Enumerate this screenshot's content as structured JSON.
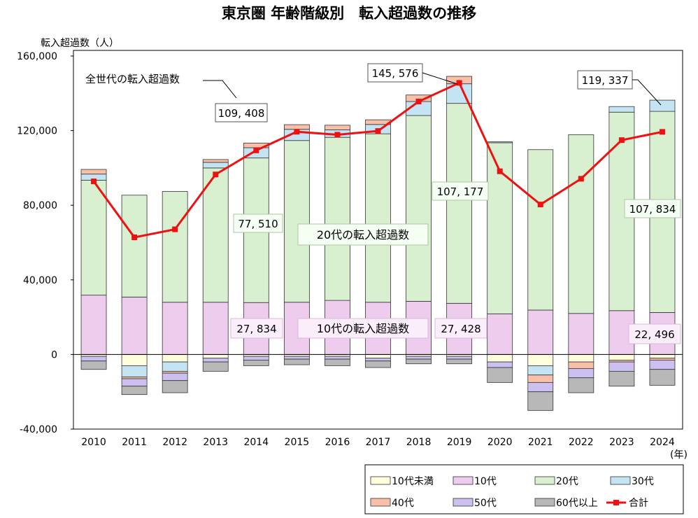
{
  "chart_data": {
    "type": "bar",
    "title": "東京圏 年齢階級別　転入超過数の推移",
    "ylabel": "転入超過数（人）",
    "xlabel": "(年)",
    "ylim": [
      -40000,
      160000
    ],
    "yticks": [
      "160,000",
      "120,000",
      "80,000",
      "40,000",
      "0",
      "-40,000"
    ],
    "ytick_values": [
      160000,
      120000,
      80000,
      40000,
      0,
      -40000
    ],
    "categories": [
      "2010",
      "2011",
      "2012",
      "2013",
      "2014",
      "2015",
      "2016",
      "2017",
      "2018",
      "2019",
      "2020",
      "2021",
      "2022",
      "2023",
      "2024"
    ],
    "stacked": true,
    "grid": false,
    "series": [
      {
        "name": "10代未満",
        "kind": "bar",
        "color": "#FFFFDD",
        "values": [
          -1000,
          -6000,
          -4000,
          -2000,
          -1000,
          -1000,
          -1000,
          -2000,
          -1000,
          -1000,
          -4000,
          -6000,
          -4000,
          -3000,
          -2000
        ]
      },
      {
        "name": "10代",
        "kind": "bar",
        "color": "#EECCEE",
        "values": [
          31800,
          30800,
          28000,
          28000,
          27834,
          28000,
          29000,
          28000,
          28500,
          27428,
          21800,
          23800,
          22000,
          23500,
          22496
        ]
      },
      {
        "name": "20代",
        "kind": "bar",
        "color": "#D9F0D0",
        "values": [
          61600,
          54600,
          59400,
          72000,
          77510,
          86700,
          87400,
          90300,
          99600,
          107177,
          91700,
          86000,
          95800,
          106400,
          107834
        ]
      },
      {
        "name": "30代",
        "kind": "bar",
        "color": "#C5E4F3",
        "values": [
          3300,
          -6000,
          -5000,
          3000,
          5500,
          6000,
          4000,
          5000,
          7500,
          10500,
          500,
          -5000,
          0,
          3000,
          6000
        ]
      },
      {
        "name": "40代",
        "kind": "bar",
        "color": "#F8C0A8",
        "values": [
          2500,
          -1000,
          -1000,
          1500,
          2500,
          2500,
          2500,
          2500,
          3500,
          4000,
          0,
          -4000,
          -3500,
          -1000,
          -1000
        ]
      },
      {
        "name": "50代",
        "kind": "bar",
        "color": "#CCC0F0",
        "values": [
          -2500,
          -4000,
          -4000,
          -2000,
          -2000,
          -1500,
          -1500,
          -1500,
          -1500,
          -1500,
          -3000,
          -5000,
          -5000,
          -5000,
          -5000
        ]
      },
      {
        "name": "60代以上",
        "kind": "bar",
        "color": "#B8B8B8",
        "values": [
          -4500,
          -4500,
          -6500,
          -5000,
          -3000,
          -3000,
          -3500,
          -3500,
          -2500,
          -2500,
          -8000,
          -10000,
          -8000,
          -8000,
          -8500
        ]
      },
      {
        "name": "合計",
        "kind": "line",
        "color": "#EE1111",
        "values": [
          92800,
          62800,
          67100,
          96500,
          109408,
          119400,
          117800,
          119800,
          135600,
          145576,
          98200,
          80400,
          94200,
          114900,
          119337
        ]
      }
    ],
    "annotations": {
      "total_label": "全世代の転入超過数",
      "twenties_label": "20代の転入超過数",
      "teens_label": "10代の転入超過数",
      "total_2014": "109, 408",
      "total_2019": "145, 576",
      "total_2024": "119, 337",
      "twenties_2014": "77, 510",
      "twenties_2019": "107, 177",
      "twenties_2024": "107, 834",
      "teens_2014": "27, 834",
      "teens_2019": "27, 428",
      "teens_2024": "22, 496"
    }
  }
}
